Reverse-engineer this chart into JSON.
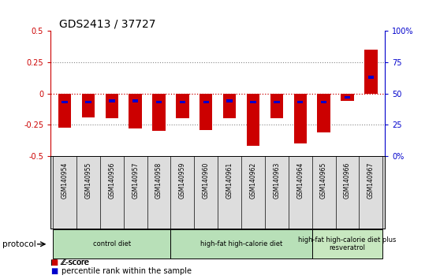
{
  "title": "GDS2413 / 37727",
  "samples": [
    "GSM140954",
    "GSM140955",
    "GSM140956",
    "GSM140957",
    "GSM140958",
    "GSM140959",
    "GSM140960",
    "GSM140961",
    "GSM140962",
    "GSM140963",
    "GSM140964",
    "GSM140965",
    "GSM140966",
    "GSM140967"
  ],
  "zscore": [
    -0.27,
    -0.19,
    -0.2,
    -0.28,
    -0.3,
    -0.2,
    -0.29,
    -0.2,
    -0.42,
    -0.2,
    -0.4,
    -0.31,
    -0.06,
    0.35
  ],
  "pct_offset": [
    -0.07,
    -0.07,
    -0.06,
    -0.06,
    -0.07,
    -0.07,
    -0.07,
    -0.06,
    -0.07,
    -0.07,
    -0.07,
    -0.07,
    -0.03,
    0.13
  ],
  "bar_color": "#cc0000",
  "dot_color": "#0000cc",
  "ylim": [
    -0.5,
    0.5
  ],
  "yticks_left": [
    -0.5,
    -0.25,
    0,
    0.25,
    0.5
  ],
  "ytick_labels_left": [
    "-0.5",
    "-0.25",
    "0",
    "0.25",
    "0.5"
  ],
  "yticks_right": [
    0,
    25,
    50,
    75,
    100
  ],
  "ytick_labels_right": [
    "0%",
    "25",
    "50",
    "75",
    "100%"
  ],
  "groups": [
    {
      "label": "control diet",
      "start": 0,
      "end": 5,
      "color": "#b8e0b8"
    },
    {
      "label": "high-fat high-calorie diet",
      "start": 5,
      "end": 11,
      "color": "#b8e0b8"
    },
    {
      "label": "high-fat high-calorie diet plus\nresveratrol",
      "start": 11,
      "end": 14,
      "color": "#c8e8c0"
    }
  ],
  "protocol_label": "protocol",
  "background_color": "#ffffff",
  "zero_line_color": "#cc0000",
  "dotted_line_color": "#888888",
  "tick_label_color_left": "#cc0000",
  "tick_label_color_right": "#0000cc",
  "spine_color_left": "#cc0000",
  "spine_color_right": "#0000cc",
  "label_box_color": "#dddddd"
}
